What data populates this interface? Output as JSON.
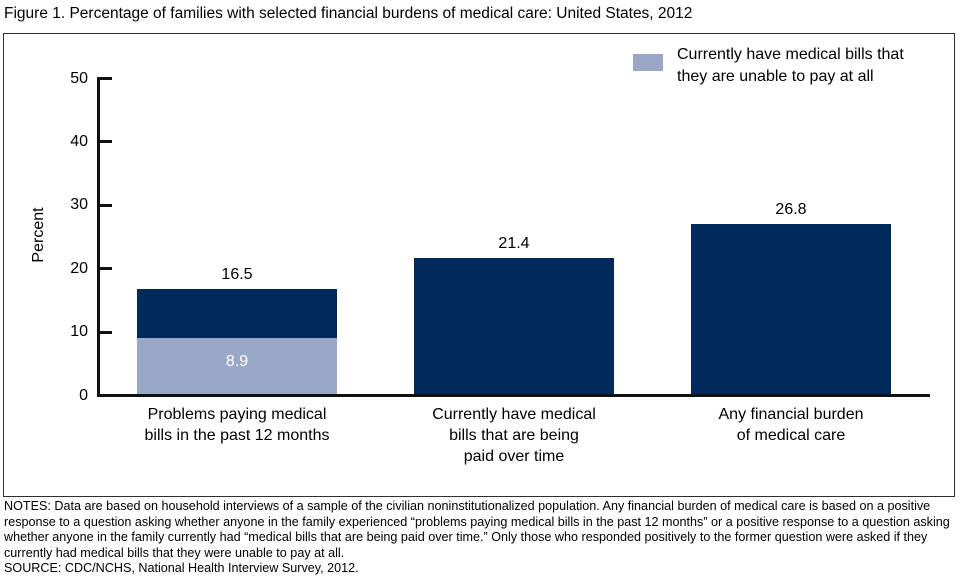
{
  "title": "Figure 1. Percentage of families with selected financial burdens of medical care: United States, 2012",
  "legend": {
    "swatch_color": "#9aa7c6",
    "lines": [
      "Currently have medical bills that",
      "they are unable to pay at all"
    ]
  },
  "notes": "NOTES: Data are based on household interviews of a sample of the civilian noninstitutionalized population. Any financial burden of medical care is based on a positive response to a question asking whether anyone in the family experienced “problems paying medical bills in the past 12 months” or a positive response to a question asking whether anyone in the family currently had “medical bills that are being paid over time.” Only those who responded positively to the former question were asked if they currently had medical bills that they were unable to pay at all.",
  "source": "SOURCE: CDC/NCHS, National Health Interview Survey, 2012.",
  "colors": {
    "bar_primary": "#002a5c",
    "bar_overlay": "#9aa7c6",
    "axis": "#111111",
    "frame_border": "#2f2f2f",
    "overlay_label_text": "#ffffff"
  },
  "chart_data": {
    "type": "bar",
    "title": "Figure 1. Percentage of families with selected financial burdens of medical care: United States, 2012",
    "xlabel": "",
    "ylabel": "Percent",
    "ylim": [
      0,
      50
    ],
    "yticks": [
      0,
      10,
      20,
      30,
      40,
      50
    ],
    "grid": false,
    "legend_position": "top-right",
    "categories": [
      "Problems paying medical bills in the past 12 months",
      "Currently have medical bills that are being paid over time",
      "Any financial burden of medical care"
    ],
    "category_lines": [
      [
        "Problems paying medical",
        "bills in the past 12 months"
      ],
      [
        "Currently have medical",
        "bills that are being",
        "paid over time"
      ],
      [
        "Any financial burden",
        "of medical care"
      ]
    ],
    "series": [
      {
        "name": "",
        "color": "#002a5c",
        "values": [
          16.5,
          21.4,
          26.8
        ]
      },
      {
        "name": "Currently have medical bills that they are unable to pay at all",
        "color": "#9aa7c6",
        "values": [
          8.9,
          null,
          null
        ]
      }
    ]
  }
}
